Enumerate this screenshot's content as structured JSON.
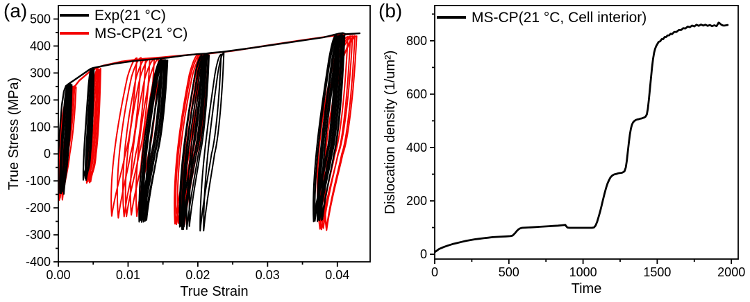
{
  "panel_labels": {
    "a": "(a)",
    "b": "(b)"
  },
  "chart_data": [
    {
      "panel": "a",
      "type": "line",
      "plot_kind": "cyclic stress-strain hysteresis loops",
      "xlabel": "True Strain",
      "ylabel": "True Stress (MPa)",
      "xlim": [
        0,
        0.0447
      ],
      "ylim": [
        -400,
        550
      ],
      "xticks": [
        0,
        0.01,
        0.02,
        0.03,
        0.04
      ],
      "xtick_labels": [
        "0.00",
        "0.01",
        "0.02",
        "0.03",
        "0.04"
      ],
      "x_minor_ticks": [
        0.005,
        0.015,
        0.025,
        0.035
      ],
      "yticks": [
        -400,
        -300,
        -200,
        -100,
        0,
        100,
        200,
        300,
        400,
        500
      ],
      "ytick_labels": [
        "-400",
        "-300",
        "-200",
        "-100",
        "0",
        "100",
        "200",
        "300",
        "400",
        "500"
      ],
      "y_minor_ticks": [
        -350,
        -250,
        -150,
        -50,
        50,
        150,
        250,
        350,
        450
      ],
      "grid": false,
      "legend_position": "top-left inside",
      "legend": [
        {
          "label": "Exp(21 °C)",
          "color": "#000000"
        },
        {
          "label": "MS-CP(21 °C)",
          "color": "#f40000"
        }
      ],
      "series": [
        {
          "name": "MS-CP(21 °C)",
          "color": "#f40000",
          "line_width": 2.0,
          "backbone": [
            [
              0,
              0
            ],
            [
              0.0003,
              70
            ],
            [
              0.0006,
              140
            ],
            [
              0.001,
              196
            ],
            [
              0.0015,
              232
            ],
            [
              0.002,
              248
            ],
            [
              0.0024,
              252
            ],
            [
              0.003,
              272
            ],
            [
              0.0045,
              305
            ],
            [
              0.0057,
              321
            ],
            [
              0.0065,
              328
            ],
            [
              0.009,
              342
            ],
            [
              0.012,
              352
            ],
            [
              0.0148,
              358
            ],
            [
              0.0165,
              362
            ],
            [
              0.019,
              368
            ],
            [
              0.0213,
              371
            ],
            [
              0.025,
              382
            ],
            [
              0.03,
              402
            ],
            [
              0.035,
              422
            ],
            [
              0.04,
              440
            ],
            [
              0.0425,
              445
            ]
          ],
          "loop_clusters": [
            {
              "x_top_start": 0.0019,
              "x_top_end": 0.0025,
              "top": 249,
              "bottom": -172,
              "cycles": 4,
              "elastic_width": 0.0019,
              "bow": 0.0004
            },
            {
              "x_top_start": 0.0056,
              "x_top_end": 0.0061,
              "top": 319,
              "bottom": -112,
              "cycles": 4,
              "elastic_width": 0.0015,
              "bow": 0.0002
            },
            {
              "x_top_start": 0.0112,
              "x_top_end": 0.015,
              "top": 357,
              "bottom": -238,
              "cycles": 7,
              "elastic_width": 0.0033,
              "bow": 0.0007
            },
            {
              "x_top_start": 0.02,
              "x_top_end": 0.0215,
              "top": 369,
              "bottom": -263,
              "cycles": 6,
              "elastic_width": 0.0034,
              "bow": 0.0006
            },
            {
              "x_top_start": 0.0415,
              "x_top_end": 0.0428,
              "top": 441,
              "bottom": -285,
              "cycles": 5,
              "elastic_width": 0.0042,
              "bow": 0.0014
            }
          ]
        },
        {
          "name": "Exp(21 °C)",
          "color": "#000000",
          "line_width": 2.0,
          "backbone": [
            [
              0,
              0
            ],
            [
              0.0002,
              80
            ],
            [
              0.0005,
              180
            ],
            [
              0.0008,
              232
            ],
            [
              0.0011,
              252
            ],
            [
              0.0015,
              260
            ],
            [
              0.0017,
              264
            ],
            [
              0.0019,
              267
            ],
            [
              0.0046,
              315
            ],
            [
              0.005,
              319
            ],
            [
              0.0054,
              321
            ],
            [
              0.008,
              334
            ],
            [
              0.011,
              345
            ],
            [
              0.014,
              352
            ],
            [
              0.015,
              355
            ],
            [
              0.0158,
              357
            ],
            [
              0.018,
              365
            ],
            [
              0.02,
              370
            ],
            [
              0.0212,
              372
            ],
            [
              0.0218,
              374
            ],
            [
              0.0235,
              378
            ],
            [
              0.028,
              394
            ],
            [
              0.033,
              413
            ],
            [
              0.038,
              432
            ],
            [
              0.0402,
              446
            ],
            [
              0.0408,
              448
            ],
            [
              0.0412,
              444
            ],
            [
              0.0432,
              447
            ]
          ],
          "loop_clusters": [
            {
              "x_top_start": 0.0014,
              "x_top_end": 0.0019,
              "top": 261,
              "bottom": -150,
              "cycles": 5,
              "elastic_width": 0.0012,
              "bow": 0.00015
            },
            {
              "x_top_start": 0.0047,
              "x_top_end": 0.0051,
              "top": 317,
              "bottom": -100,
              "cycles": 5,
              "elastic_width": 0.0011,
              "bow": 0.0001
            },
            {
              "x_top_start": 0.0147,
              "x_top_end": 0.0157,
              "top": 352,
              "bottom": -255,
              "cycles": 8,
              "elastic_width": 0.003,
              "bow": 0.0003
            },
            {
              "x_top_start": 0.0206,
              "x_top_end": 0.0216,
              "top": 370,
              "bottom": -280,
              "cycles": 8,
              "elastic_width": 0.0031,
              "bow": 0.0003
            },
            {
              "x_top_start": 0.0233,
              "x_top_end": 0.0237,
              "top": 376,
              "bottom": -288,
              "cycles": 2,
              "elastic_width": 0.003,
              "bow": 0.0001
            },
            {
              "x_top_start": 0.0398,
              "x_top_end": 0.041,
              "top": 444,
              "bottom": -252,
              "cycles": 9,
              "elastic_width": 0.0033,
              "bow": 0.0004
            }
          ]
        }
      ]
    },
    {
      "panel": "b",
      "type": "line",
      "plot_kind": "dislocation density evolution",
      "xlabel": "Time",
      "ylabel": "Dislocation density (1/um²)",
      "xlim": [
        0,
        2046
      ],
      "ylim": [
        -18,
        932
      ],
      "xticks": [
        0,
        500,
        1000,
        1500,
        2000
      ],
      "xtick_labels": [
        "0",
        "500",
        "1000",
        "1500",
        "2000"
      ],
      "x_minor_ticks": [
        250,
        750,
        1250,
        1750
      ],
      "yticks": [
        0,
        200,
        400,
        600,
        800
      ],
      "ytick_labels": [
        "0",
        "200",
        "400",
        "600",
        "800"
      ],
      "y_minor_ticks": [
        100,
        300,
        500,
        700,
        900
      ],
      "grid": false,
      "legend_position": "top-left inside",
      "legend": [
        {
          "label": "MS-CP(21 °C, Cell interior)",
          "color": "#000000"
        }
      ],
      "series": [
        {
          "name": "MS-CP(21 °C, Cell interior)",
          "color": "#000000",
          "line_width": 2.8,
          "points": [
            [
              0,
              8
            ],
            [
              15,
              14
            ],
            [
              30,
              20
            ],
            [
              60,
              27
            ],
            [
              90,
              33
            ],
            [
              120,
              38
            ],
            [
              150,
              42
            ],
            [
              180,
              46
            ],
            [
              210,
              50
            ],
            [
              240,
              53
            ],
            [
              270,
              56
            ],
            [
              300,
              58
            ],
            [
              330,
              60
            ],
            [
              360,
              62
            ],
            [
              390,
              64
            ],
            [
              420,
              65
            ],
            [
              450,
              66
            ],
            [
              480,
              67
            ],
            [
              510,
              68
            ],
            [
              525,
              70
            ],
            [
              540,
              78
            ],
            [
              552,
              86
            ],
            [
              564,
              93
            ],
            [
              576,
              97
            ],
            [
              590,
              99
            ],
            [
              620,
              100
            ],
            [
              650,
              101
            ],
            [
              680,
              102
            ],
            [
              710,
              103
            ],
            [
              740,
              104
            ],
            [
              770,
              105
            ],
            [
              800,
              106
            ],
            [
              830,
              107
            ],
            [
              860,
              109
            ],
            [
              880,
              110
            ],
            [
              888,
              104
            ],
            [
              895,
              100
            ],
            [
              910,
              99
            ],
            [
              940,
              99
            ],
            [
              970,
              99
            ],
            [
              1000,
              99
            ],
            [
              1030,
              99
            ],
            [
              1060,
              99
            ],
            [
              1075,
              101
            ],
            [
              1085,
              108
            ],
            [
              1095,
              122
            ],
            [
              1105,
              140
            ],
            [
              1115,
              160
            ],
            [
              1125,
              182
            ],
            [
              1135,
              205
            ],
            [
              1145,
              228
            ],
            [
              1155,
              248
            ],
            [
              1165,
              265
            ],
            [
              1175,
              278
            ],
            [
              1185,
              288
            ],
            [
              1195,
              294
            ],
            [
              1205,
              298
            ],
            [
              1215,
              300
            ],
            [
              1225,
              301
            ],
            [
              1235,
              303
            ],
            [
              1245,
              304
            ],
            [
              1255,
              305
            ],
            [
              1265,
              306
            ],
            [
              1272,
              308
            ],
            [
              1280,
              312
            ],
            [
              1288,
              325
            ],
            [
              1295,
              350
            ],
            [
              1302,
              385
            ],
            [
              1309,
              420
            ],
            [
              1316,
              450
            ],
            [
              1323,
              472
            ],
            [
              1330,
              486
            ],
            [
              1337,
              494
            ],
            [
              1345,
              499
            ],
            [
              1355,
              503
            ],
            [
              1365,
              505
            ],
            [
              1375,
              506
            ],
            [
              1385,
              508
            ],
            [
              1395,
              509
            ],
            [
              1405,
              511
            ],
            [
              1415,
              513
            ],
            [
              1422,
              516
            ],
            [
              1430,
              524
            ],
            [
              1437,
              545
            ],
            [
              1444,
              580
            ],
            [
              1451,
              620
            ],
            [
              1458,
              660
            ],
            [
              1465,
              700
            ],
            [
              1472,
              732
            ],
            [
              1479,
              755
            ],
            [
              1486,
              770
            ],
            [
              1493,
              780
            ],
            [
              1500,
              787
            ],
            [
              1510,
              796
            ],
            [
              1520,
              798
            ],
            [
              1530,
              806
            ],
            [
              1540,
              806
            ],
            [
              1550,
              814
            ],
            [
              1560,
              814
            ],
            [
              1570,
              820
            ],
            [
              1580,
              820
            ],
            [
              1590,
              826
            ],
            [
              1600,
              825
            ],
            [
              1615,
              833
            ],
            [
              1630,
              833
            ],
            [
              1645,
              840
            ],
            [
              1660,
              840
            ],
            [
              1675,
              847
            ],
            [
              1690,
              846
            ],
            [
              1705,
              853
            ],
            [
              1720,
              851
            ],
            [
              1735,
              857
            ],
            [
              1750,
              854
            ],
            [
              1765,
              860
            ],
            [
              1780,
              856
            ],
            [
              1795,
              861
            ],
            [
              1810,
              857
            ],
            [
              1825,
              860
            ],
            [
              1840,
              856
            ],
            [
              1855,
              859
            ],
            [
              1870,
              855
            ],
            [
              1885,
              858
            ],
            [
              1900,
              855
            ],
            [
              1908,
              862
            ],
            [
              1914,
              868
            ],
            [
              1920,
              866
            ],
            [
              1928,
              862
            ],
            [
              1936,
              859
            ],
            [
              1945,
              857
            ],
            [
              1955,
              857
            ],
            [
              1965,
              858
            ],
            [
              1975,
              859
            ]
          ]
        }
      ]
    }
  ]
}
